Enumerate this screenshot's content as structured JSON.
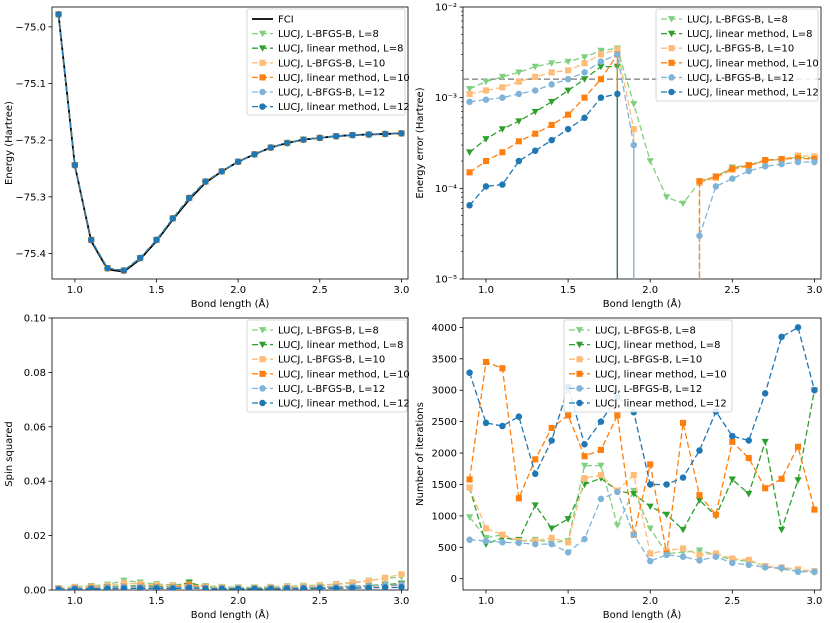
{
  "colors": {
    "fci": "#000000",
    "green_light": "#7fd07f",
    "green_dark": "#2ca02c",
    "orange_light": "#ffbb78",
    "orange_dark": "#ff7f0e",
    "blue_light": "#7fb4d8",
    "blue_dark": "#1f77b4",
    "grey_dashed": "#777777"
  },
  "chart_data": [
    {
      "id": "energy",
      "type": "line",
      "xlabel": "Bond length (Å)",
      "ylabel": "Energy (Hartree)",
      "xlim": [
        0.86,
        3.04
      ],
      "ylim": [
        -75.445,
        -74.965
      ],
      "xticks": [
        "1.0",
        "1.5",
        "2.0",
        "2.5",
        "3.0"
      ],
      "yticks": [
        "−75.0",
        "−75.1",
        "−75.2",
        "−75.3",
        "−75.4"
      ],
      "legend": "top-right",
      "x": [
        0.9,
        1.0,
        1.1,
        1.2,
        1.3,
        1.4,
        1.5,
        1.6,
        1.7,
        1.8,
        1.9,
        2.0,
        2.1,
        2.2,
        2.3,
        2.4,
        2.5,
        2.6,
        2.7,
        2.8,
        2.9,
        3.0
      ],
      "series": [
        {
          "name": "FCI",
          "values": [
            -74.978,
            -75.245,
            -75.378,
            -75.428,
            -75.432,
            -75.41,
            -75.378,
            -75.34,
            -75.305,
            -75.275,
            -75.255,
            -75.238,
            -75.225,
            -75.213,
            -75.205,
            -75.199,
            -75.196,
            -75.193,
            -75.191,
            -75.19,
            -75.189,
            -75.188
          ]
        },
        {
          "name": "LUCJ, L-BFGS-B, L=8",
          "values": [
            -74.978,
            -75.244,
            -75.376,
            -75.426,
            -75.43,
            -75.408,
            -75.376,
            -75.338,
            -75.302,
            -75.273,
            -75.255,
            -75.238,
            -75.225,
            -75.213,
            -75.205,
            -75.199,
            -75.196,
            -75.193,
            -75.191,
            -75.19,
            -75.189,
            -75.188
          ]
        },
        {
          "name": "LUCJ, linear method, L=8",
          "values": [
            -74.978,
            -75.244,
            -75.376,
            -75.426,
            -75.43,
            -75.408,
            -75.376,
            -75.338,
            -75.302,
            -75.273,
            -75.255,
            -75.238,
            -75.225,
            -75.213,
            -75.205,
            -75.199,
            -75.196,
            -75.193,
            -75.191,
            -75.19,
            -75.189,
            -75.188
          ]
        },
        {
          "name": "LUCJ, L-BFGS-B, L=10",
          "values": [
            -74.978,
            -75.244,
            -75.376,
            -75.426,
            -75.43,
            -75.408,
            -75.376,
            -75.338,
            -75.302,
            -75.273,
            -75.255,
            -75.238,
            -75.225,
            -75.213,
            -75.205,
            -75.199,
            -75.196,
            -75.193,
            -75.191,
            -75.19,
            -75.189,
            -75.188
          ]
        },
        {
          "name": "LUCJ, linear method, L=10",
          "values": [
            -74.978,
            -75.244,
            -75.376,
            -75.426,
            -75.43,
            -75.408,
            -75.376,
            -75.338,
            -75.302,
            -75.273,
            -75.255,
            -75.238,
            -75.225,
            -75.213,
            -75.205,
            -75.199,
            -75.196,
            -75.193,
            -75.191,
            -75.19,
            -75.189,
            -75.188
          ]
        },
        {
          "name": "LUCJ, L-BFGS-B, L=12",
          "values": [
            -74.978,
            -75.244,
            -75.376,
            -75.426,
            -75.43,
            -75.408,
            -75.376,
            -75.338,
            -75.302,
            -75.273,
            -75.255,
            -75.238,
            -75.225,
            -75.213,
            -75.205,
            -75.199,
            -75.196,
            -75.193,
            -75.191,
            -75.19,
            -75.189,
            -75.188
          ]
        },
        {
          "name": "LUCJ, linear method, L=12",
          "values": [
            -74.978,
            -75.244,
            -75.376,
            -75.426,
            -75.43,
            -75.408,
            -75.376,
            -75.338,
            -75.302,
            -75.273,
            -75.255,
            -75.238,
            -75.225,
            -75.213,
            -75.205,
            -75.199,
            -75.196,
            -75.193,
            -75.191,
            -75.19,
            -75.189,
            -75.188
          ]
        }
      ]
    },
    {
      "id": "error",
      "type": "line",
      "yscale": "log",
      "xlabel": "Bond length (Å)",
      "ylabel": "Energy error (Hartree)",
      "xlim": [
        0.86,
        3.04
      ],
      "ylim": [
        1e-05,
        0.01
      ],
      "xticks": [
        "1.0",
        "1.5",
        "2.0",
        "2.5",
        "3.0"
      ],
      "yticks": [
        "10⁻²",
        "10⁻³",
        "10⁻⁴",
        "10⁻⁵"
      ],
      "hline": 0.0016,
      "legend": "top-right",
      "x": [
        0.9,
        1.0,
        1.1,
        1.2,
        1.3,
        1.4,
        1.5,
        1.6,
        1.7,
        1.8,
        1.9,
        2.0,
        2.1,
        2.2,
        2.3,
        2.4,
        2.5,
        2.6,
        2.7,
        2.8,
        2.9,
        3.0
      ],
      "series": [
        {
          "name": "LUCJ, L-BFGS-B, L=8",
          "values": [
            0.00125,
            0.0015,
            0.0017,
            0.0019,
            0.0022,
            0.0024,
            0.0025,
            0.0028,
            0.0033,
            0.0035,
            0.00085,
            0.0002,
            8e-05,
            6.8e-05,
            0.000118,
            0.000135,
            0.00017,
            0.00018,
            0.0002,
            0.00021,
            0.00022,
            0.000215
          ]
        },
        {
          "name": "LUCJ, linear method, L=8",
          "values": [
            0.00025,
            0.00035,
            0.00045,
            0.00055,
            0.0007,
            0.0009,
            0.0012,
            0.0016,
            0.0022,
            0.0022,
            null,
            null,
            null,
            null,
            null,
            null,
            null,
            null,
            null,
            null,
            null,
            null
          ]
        },
        {
          "name": "LUCJ, L-BFGS-B, L=10",
          "values": [
            0.0011,
            0.0012,
            0.0013,
            0.0015,
            0.0017,
            0.0019,
            0.002,
            0.0024,
            0.003,
            0.0034,
            0.00045,
            null,
            null,
            null,
            0.000115,
            0.00013,
            0.00016,
            0.000175,
            0.0002,
            0.00021,
            0.00023,
            0.000225
          ]
        },
        {
          "name": "LUCJ, linear method, L=10",
          "values": [
            0.00015,
            0.0002,
            0.00025,
            0.00033,
            0.0004,
            0.0005,
            0.00065,
            0.001,
            0.0016,
            0.003,
            null,
            null,
            null,
            null,
            0.00012,
            0.000135,
            0.000165,
            0.00018,
            0.000205,
            0.00021,
            0.000215,
            0.00021
          ]
        },
        {
          "name": "LUCJ, L-BFGS-B, L=12",
          "values": [
            0.0009,
            0.00095,
            0.001,
            0.0011,
            0.0012,
            0.0014,
            0.0016,
            0.0019,
            0.0025,
            0.003,
            0.0003,
            null,
            null,
            null,
            3e-05,
            0.000105,
            0.000128,
            0.000155,
            0.000175,
            0.000185,
            0.000195,
            0.000195
          ]
        },
        {
          "name": "LUCJ, linear method, L=12",
          "values": [
            6.5e-05,
            0.000105,
            0.00011,
            0.0002,
            0.00026,
            0.00034,
            0.00045,
            0.0006,
            0.001,
            0.0011,
            null,
            null,
            null,
            null,
            null,
            null,
            null,
            null,
            null,
            null,
            null,
            null
          ]
        }
      ]
    },
    {
      "id": "spin",
      "type": "line",
      "xlabel": "Bond length (Å)",
      "ylabel": "Spin squared",
      "xlim": [
        0.86,
        3.04
      ],
      "ylim": [
        0,
        0.1
      ],
      "xticks": [
        "1.0",
        "1.5",
        "2.0",
        "2.5",
        "3.0"
      ],
      "yticks": [
        "0.00",
        "0.02",
        "0.04",
        "0.06",
        "0.08",
        "0.10"
      ],
      "legend": "top-right",
      "x": [
        0.9,
        1.0,
        1.1,
        1.2,
        1.3,
        1.4,
        1.5,
        1.6,
        1.7,
        1.8,
        1.9,
        2.0,
        2.1,
        2.2,
        2.3,
        2.4,
        2.5,
        2.6,
        2.7,
        2.8,
        2.9,
        3.0
      ],
      "series": [
        {
          "name": "LUCJ, L-BFGS-B, L=8",
          "values": [
            0.0008,
            0.0012,
            0.0015,
            0.002,
            0.0035,
            0.0028,
            0.0022,
            0.0018,
            0.0025,
            0.0015,
            0.0012,
            0.001,
            0.001,
            0.0012,
            0.0014,
            0.0016,
            0.0018,
            0.0022,
            0.0028,
            0.0035,
            0.0042,
            0.0048
          ]
        },
        {
          "name": "LUCJ, linear method, L=8",
          "values": [
            0.0005,
            0.0008,
            0.001,
            0.0012,
            0.0015,
            0.0015,
            0.0014,
            0.0012,
            0.0028,
            0.001,
            0.0008,
            0.0006,
            0.0006,
            0.0007,
            0.0008,
            0.0009,
            0.001,
            0.0012,
            0.0014,
            0.0016,
            0.002,
            0.0024
          ]
        },
        {
          "name": "LUCJ, L-BFGS-B, L=10",
          "values": [
            0.0007,
            0.001,
            0.0012,
            0.0016,
            0.0025,
            0.0022,
            0.0018,
            0.0015,
            0.002,
            0.0012,
            0.001,
            0.0008,
            0.0008,
            0.001,
            0.0012,
            0.0014,
            0.0016,
            0.002,
            0.0026,
            0.0034,
            0.0045,
            0.0058
          ]
        },
        {
          "name": "LUCJ, linear method, L=10",
          "values": [
            0.0004,
            0.0006,
            0.0008,
            0.001,
            0.0012,
            0.0012,
            0.0011,
            0.001,
            0.0018,
            0.0008,
            0.0006,
            0.0005,
            0.0005,
            0.0006,
            0.0007,
            0.0008,
            0.0009,
            0.001,
            0.0012,
            0.0014,
            0.0016,
            0.0018
          ]
        },
        {
          "name": "LUCJ, L-BFGS-B, L=12",
          "values": [
            0.0004,
            0.0006,
            0.0007,
            0.0009,
            0.0012,
            0.0011,
            0.001,
            0.0009,
            0.0012,
            0.0008,
            0.0007,
            0.0006,
            0.0006,
            0.0007,
            0.0008,
            0.0009,
            0.001,
            0.0011,
            0.0013,
            0.0015,
            0.0018,
            0.002
          ]
        },
        {
          "name": "LUCJ, linear method, L=12",
          "values": [
            0.0002,
            0.0003,
            0.0004,
            0.0005,
            0.0006,
            0.0006,
            0.0006,
            0.0005,
            0.0008,
            0.0005,
            0.0004,
            0.0004,
            0.0004,
            0.0004,
            0.0005,
            0.0005,
            0.0006,
            0.0006,
            0.0007,
            0.0008,
            0.0009,
            0.001
          ]
        }
      ]
    },
    {
      "id": "iterations",
      "type": "line",
      "xlabel": "Bond length (Å)",
      "ylabel": "Number of iterations",
      "xlim": [
        0.86,
        3.04
      ],
      "ylim": [
        -180,
        4150
      ],
      "xticks": [
        "1.0",
        "1.5",
        "2.0",
        "2.5",
        "3.0"
      ],
      "yticks": [
        "0",
        "500",
        "1000",
        "1500",
        "2000",
        "2500",
        "3000",
        "3500",
        "4000"
      ],
      "legend": "top-center",
      "x": [
        0.9,
        1.0,
        1.1,
        1.2,
        1.3,
        1.4,
        1.5,
        1.6,
        1.7,
        1.8,
        1.9,
        2.0,
        2.1,
        2.2,
        2.3,
        2.4,
        2.5,
        2.6,
        2.7,
        2.8,
        2.9,
        3.0
      ],
      "series": [
        {
          "name": "LUCJ, L-BFGS-B, L=8",
          "values": [
            980,
            650,
            700,
            600,
            620,
            580,
            600,
            1800,
            1800,
            850,
            1400,
            800,
            400,
            420,
            450,
            380,
            300,
            280,
            200,
            150,
            130,
            100
          ]
        },
        {
          "name": "LUCJ, linear method, L=8",
          "values": [
            1450,
            550,
            650,
            620,
            1170,
            800,
            950,
            1500,
            1600,
            1400,
            1350,
            1150,
            1020,
            780,
            1250,
            1000,
            1580,
            1350,
            2180,
            780,
            1570,
            3000
          ]
        },
        {
          "name": "LUCJ, L-BFGS-B, L=10",
          "values": [
            1450,
            800,
            700,
            600,
            600,
            650,
            580,
            1600,
            1650,
            1400,
            1650,
            400,
            450,
            480,
            380,
            400,
            320,
            300,
            200,
            180,
            150,
            120
          ]
        },
        {
          "name": "LUCJ, linear method, L=10",
          "values": [
            1580,
            3450,
            3350,
            1280,
            1900,
            2400,
            2600,
            1950,
            2050,
            2600,
            700,
            1820,
            400,
            2480,
            1330,
            1020,
            2180,
            1920,
            1440,
            1590,
            2100,
            1100
          ]
        },
        {
          "name": "LUCJ, L-BFGS-B, L=12",
          "values": [
            620,
            600,
            580,
            570,
            550,
            550,
            420,
            630,
            1270,
            1380,
            700,
            280,
            380,
            350,
            290,
            350,
            250,
            220,
            180,
            170,
            110,
            110
          ]
        },
        {
          "name": "LUCJ, linear method, L=12",
          "values": [
            3280,
            2480,
            2430,
            2580,
            1670,
            2200,
            3050,
            2140,
            2500,
            2900,
            2650,
            1500,
            1500,
            1610,
            2040,
            2660,
            2270,
            2200,
            2950,
            3850,
            4000,
            3000
          ]
        }
      ]
    }
  ]
}
